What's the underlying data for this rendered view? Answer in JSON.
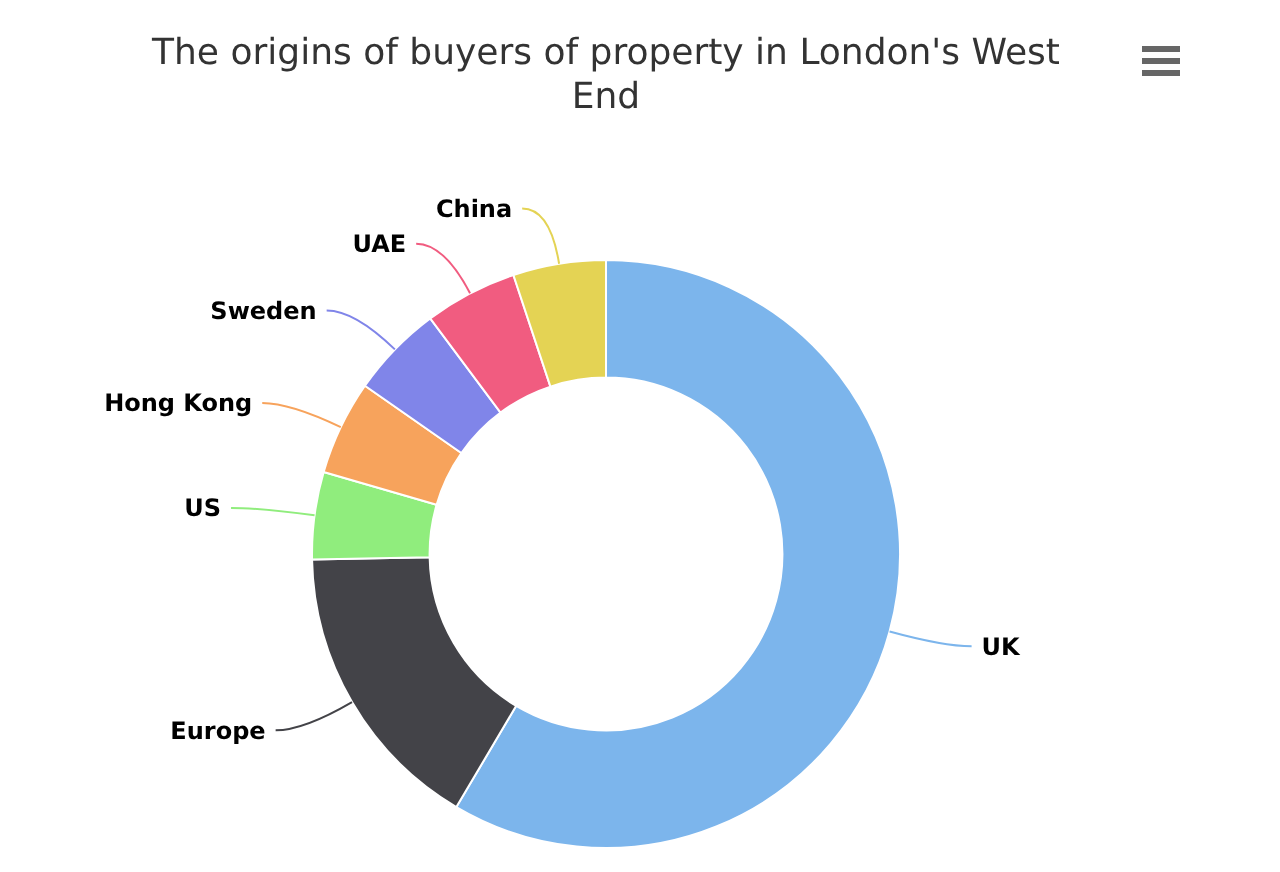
{
  "chart_data": {
    "type": "donut",
    "title": "The origins of buyers of property in London's West End",
    "categories": [
      "UK",
      "Europe",
      "US",
      "Hong Kong",
      "Sweden",
      "UAE",
      "China"
    ],
    "values": [
      58.5,
      16.2,
      4.8,
      5.2,
      5.1,
      5.1,
      5.1
    ],
    "colors": [
      "#7cb5ec",
      "#434348",
      "#90ed7d",
      "#f7a35c",
      "#8085e9",
      "#f15c80",
      "#e4d354"
    ]
  }
}
